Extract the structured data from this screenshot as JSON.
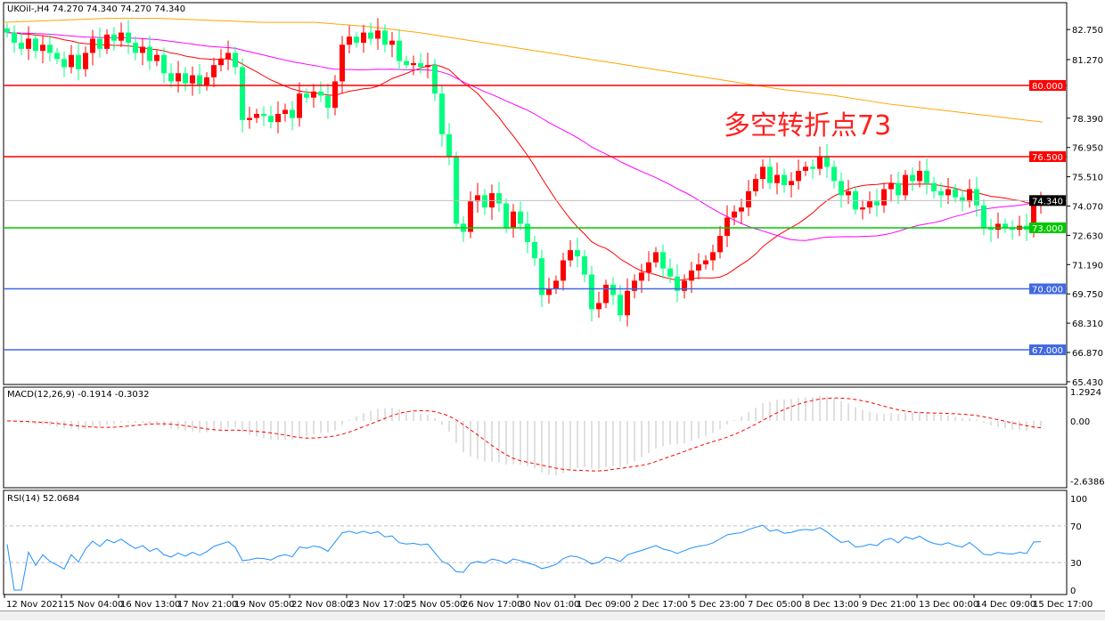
{
  "header": {
    "title": "UKOil-,H4  74.270 74.340 74.270 74.340"
  },
  "annotation": {
    "text": "多空转折点73",
    "color": "#ff2020"
  },
  "chart_data": [
    {
      "type": "candlestick",
      "symbol": "UKOil-",
      "timeframe": "H4",
      "ylim": [
        65.43,
        83.3
      ],
      "y_ticks": [
        "82.750",
        "81.270",
        "78.390",
        "76.950",
        "75.510",
        "74.070",
        "72.630",
        "71.190",
        "69.750",
        "68.310",
        "66.870",
        "65.430"
      ],
      "up_color": "#ff0000",
      "down_color": "#00ff7f",
      "closes": [
        82.6,
        82.1,
        81.8,
        82.3,
        81.7,
        82.0,
        81.6,
        81.3,
        80.9,
        81.5,
        80.8,
        81.6,
        82.3,
        81.8,
        82.5,
        82.2,
        82.6,
        82.1,
        81.6,
        81.9,
        81.2,
        81.5,
        80.6,
        80.2,
        80.6,
        80.1,
        80.5,
        80.0,
        80.4,
        81.0,
        81.3,
        81.6,
        80.9,
        78.3,
        78.4,
        78.6,
        78.5,
        78.2,
        78.6,
        78.8,
        78.4,
        79.6,
        79.4,
        79.7,
        79.5,
        78.9,
        80.2,
        82.0,
        82.4,
        82.1,
        82.6,
        82.3,
        82.7,
        82.0,
        82.2,
        81.2,
        81.0,
        81.1,
        80.9,
        81.0,
        79.6,
        77.6,
        76.5,
        73.2,
        72.8,
        74.3,
        74.6,
        74.0,
        74.7,
        74.2,
        73.0,
        73.8,
        73.2,
        72.3,
        71.5,
        69.7,
        70.0,
        70.4,
        71.4,
        71.9,
        71.6,
        70.7,
        69.0,
        69.3,
        70.2,
        69.7,
        68.7,
        69.9,
        70.4,
        70.8,
        71.3,
        71.8,
        71.0,
        70.6,
        69.9,
        70.4,
        70.9,
        71.2,
        71.4,
        71.8,
        72.6,
        73.5,
        73.8,
        74.0,
        74.8,
        75.4,
        76.0,
        75.2,
        75.6,
        75.1,
        75.3,
        75.8,
        76.0,
        75.9,
        76.5,
        76.0,
        75.3,
        74.6,
        74.8,
        73.9,
        74.0,
        74.3,
        74.1,
        74.9,
        75.2,
        74.6,
        75.6,
        75.3,
        75.8,
        75.2,
        74.8,
        74.6,
        74.9,
        74.5,
        74.3,
        74.9,
        74.1,
        73.0,
        72.9,
        73.2,
        73.0,
        72.9,
        73.1,
        72.9,
        74.3,
        74.34
      ],
      "long_ma": {
        "color": "#ffa500",
        "values": [
          83.1,
          83.2,
          83.3,
          83.3,
          83.2,
          83.1,
          83.1,
          82.9,
          82.6,
          82.2,
          81.8,
          81.4,
          81.0,
          80.6,
          80.2,
          79.8,
          79.5,
          79.1,
          78.8,
          78.5,
          78.2
        ]
      },
      "fast_ma_color": "#ff0000",
      "slow_ma_color": "#ff00ff",
      "levels": [
        {
          "value": "80.000",
          "color": "#ff0000"
        },
        {
          "value": "76.500",
          "color": "#ff0000"
        },
        {
          "value": "74.340",
          "color": "#000000",
          "line": "#c0c0c0"
        },
        {
          "value": "73.000",
          "color": "#00c800"
        },
        {
          "value": "70.000",
          "color": "#4169e1"
        },
        {
          "value": "67.000",
          "color": "#4169e1"
        }
      ],
      "x_ticks": [
        "12 Nov 2021",
        "15 Nov 04:00",
        "16 Nov 13:00",
        "17 Nov 21:00",
        "19 Nov 05:00",
        "22 Nov 08:00",
        "23 Nov 17:00",
        "25 Nov 05:00",
        "26 Nov 17:00",
        "30 Nov 01:00",
        "1 Dec 09:00",
        "2 Dec 17:00",
        "5 Dec 23:00",
        "7 Dec 05:00",
        "8 Dec 13:00",
        "9 Dec 21:00",
        "13 Dec 00:00",
        "14 Dec 09:00",
        "15 Dec 17:00"
      ]
    },
    {
      "type": "bar+line",
      "label": "MACD(12,26,9) -0.1914 -0.3032",
      "ylim": [
        -2.6386,
        1.2924
      ],
      "y_ticks": [
        "1.2924",
        "0.00",
        "-2.6386"
      ],
      "hist_color": "#c0c0c0",
      "signal_color": "#ff0000"
    },
    {
      "type": "line",
      "label": "RSI(14) 52.0684",
      "ylim": [
        0,
        100
      ],
      "y_ticks": [
        "100",
        "70",
        "30",
        "0"
      ],
      "levels": [
        70,
        30
      ],
      "color": "#1e90ff"
    }
  ]
}
